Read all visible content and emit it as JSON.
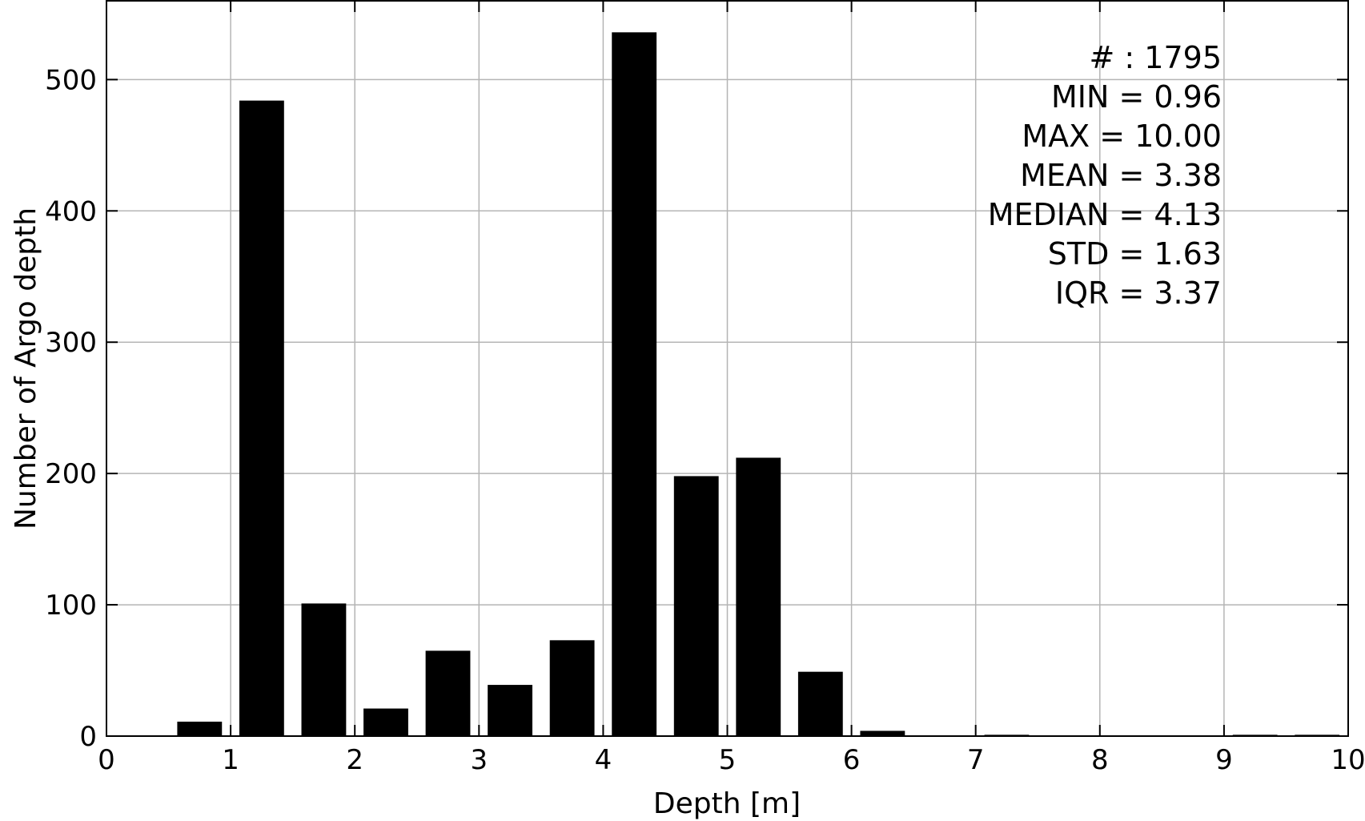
{
  "chart_data": {
    "type": "bar",
    "xlabel": "Depth [m]",
    "ylabel": "Number of Argo depth",
    "xlim": [
      0,
      10
    ],
    "ylim": [
      0,
      560
    ],
    "xticks": [
      0,
      1,
      2,
      3,
      4,
      5,
      6,
      7,
      8,
      9,
      10
    ],
    "yticks": [
      0,
      100,
      200,
      300,
      400,
      500
    ],
    "grid": true,
    "bar_width": 0.36,
    "bars": [
      {
        "x": 0.75,
        "value": 11
      },
      {
        "x": 1.25,
        "value": 484
      },
      {
        "x": 1.75,
        "value": 101
      },
      {
        "x": 2.25,
        "value": 21
      },
      {
        "x": 2.75,
        "value": 65
      },
      {
        "x": 3.25,
        "value": 39
      },
      {
        "x": 3.75,
        "value": 73
      },
      {
        "x": 4.25,
        "value": 536
      },
      {
        "x": 4.75,
        "value": 198
      },
      {
        "x": 5.25,
        "value": 212
      },
      {
        "x": 5.75,
        "value": 49
      },
      {
        "x": 6.25,
        "value": 4
      },
      {
        "x": 6.75,
        "value": 0
      },
      {
        "x": 7.25,
        "value": 1
      },
      {
        "x": 7.75,
        "value": 0
      },
      {
        "x": 8.25,
        "value": 0
      },
      {
        "x": 8.75,
        "value": 0
      },
      {
        "x": 9.25,
        "value": 1
      },
      {
        "x": 9.75,
        "value": 1
      }
    ],
    "annotations": [
      "# : 1795",
      "MIN = 0.96",
      "MAX =  10.00",
      "MEAN = 3.38",
      "MEDIAN = 4.13",
      "STD = 1.63",
      "IQR = 3.37"
    ]
  }
}
